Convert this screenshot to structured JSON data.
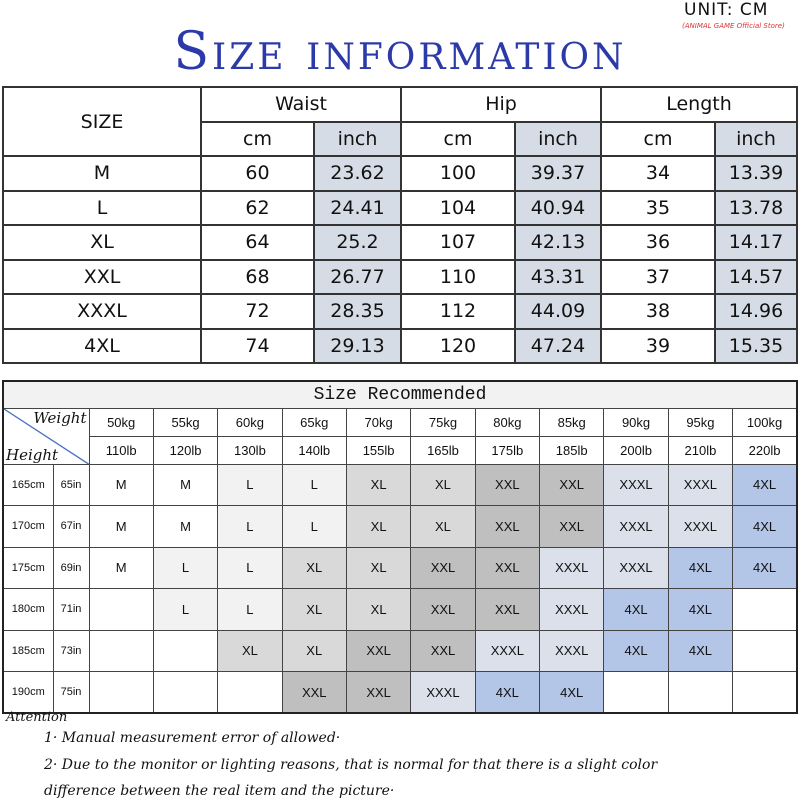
{
  "unit": "UNIT: CM",
  "store": "(ANIMAL GAME Official Store)",
  "title": "Size information",
  "size_table": {
    "size_label": "SIZE",
    "groups": [
      "Waist",
      "Hip",
      "Length"
    ],
    "units": [
      "cm",
      "inch",
      "cm",
      "inch",
      "cm",
      "inch"
    ],
    "rows": [
      [
        "M",
        "60",
        "23.62",
        "100",
        "39.37",
        "34",
        "13.39"
      ],
      [
        "L",
        "62",
        "24.41",
        "104",
        "40.94",
        "35",
        "13.78"
      ],
      [
        "XL",
        "64",
        "25.2",
        "107",
        "42.13",
        "36",
        "14.17"
      ],
      [
        "XXL",
        "68",
        "26.77",
        "110",
        "43.31",
        "37",
        "14.57"
      ],
      [
        "XXXL",
        "72",
        "28.35",
        "112",
        "44.09",
        "38",
        "14.96"
      ],
      [
        "4XL",
        "74",
        "29.13",
        "120",
        "47.24",
        "39",
        "15.35"
      ]
    ]
  },
  "recommend": {
    "title": "Size Recommended",
    "weight_label": "Weight",
    "height_label": "Height",
    "kg": [
      "50kg",
      "55kg",
      "60kg",
      "65kg",
      "70kg",
      "75kg",
      "80kg",
      "85kg",
      "90kg",
      "95kg",
      "100kg"
    ],
    "lb": [
      "110lb",
      "120lb",
      "130lb",
      "140lb",
      "155lb",
      "165lb",
      "175lb",
      "185lb",
      "200lb",
      "210lb",
      "220lb"
    ],
    "rows": [
      {
        "cm": "165cm",
        "in": "65in",
        "sizes": [
          "M",
          "M",
          "L",
          "L",
          "XL",
          "XL",
          "XXL",
          "XXL",
          "XXXL",
          "XXXL",
          "4XL"
        ]
      },
      {
        "cm": "170cm",
        "in": "67in",
        "sizes": [
          "M",
          "M",
          "L",
          "L",
          "XL",
          "XL",
          "XXL",
          "XXL",
          "XXXL",
          "XXXL",
          "4XL"
        ]
      },
      {
        "cm": "175cm",
        "in": "69in",
        "sizes": [
          "M",
          "L",
          "L",
          "XL",
          "XL",
          "XXL",
          "XXL",
          "XXXL",
          "XXXL",
          "4XL",
          "4XL"
        ]
      },
      {
        "cm": "180cm",
        "in": "71in",
        "sizes": [
          "",
          "L",
          "L",
          "XL",
          "XL",
          "XXL",
          "XXL",
          "XXXL",
          "4XL",
          "4XL",
          ""
        ]
      },
      {
        "cm": "185cm",
        "in": "73in",
        "sizes": [
          "",
          "",
          "XL",
          "XL",
          "XXL",
          "XXL",
          "XXXL",
          "XXXL",
          "4XL",
          "4XL",
          ""
        ]
      },
      {
        "cm": "190cm",
        "in": "75in",
        "sizes": [
          "",
          "",
          "",
          "XXL",
          "XXL",
          "XXXL",
          "4XL",
          "4XL",
          "",
          "",
          ""
        ]
      }
    ],
    "size_colors": {
      "M": "#ffffff",
      "L": "#f2f2f2",
      "XL": "#d9d9d9",
      "XXL": "#bfbfbf",
      "XXXL": "#dce0ea",
      "4XL": "#b4c6e7"
    }
  },
  "attention": {
    "label": "Attention",
    "notes": [
      "1· Manual measurement error of allowed·",
      "2·  Due to the monitor or lighting reasons, that is normal for that there is a slight color",
      "difference between the real item and the picture·"
    ]
  }
}
